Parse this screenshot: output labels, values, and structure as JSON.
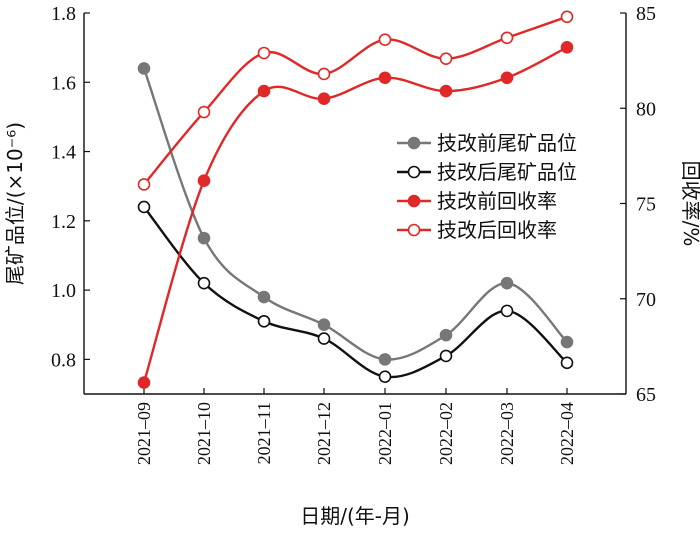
{
  "chart_data": {
    "type": "line",
    "categories": [
      "2021–09",
      "2021–10",
      "2021–11",
      "2021–12",
      "2022–01",
      "2022–02",
      "2022–03",
      "2022–04"
    ],
    "xlabel": "日期/(年-月)",
    "ylabel_left": "尾矿品位/(×10⁻⁶)",
    "ylabel_right": "回收率/%",
    "ylim_left": [
      0.7,
      1.8
    ],
    "ylim_right": [
      65,
      85
    ],
    "yticks_left": [
      "0.8",
      "1.0",
      "1.2",
      "1.4",
      "1.6",
      "1.8"
    ],
    "yticks_right": [
      "65",
      "70",
      "75",
      "80",
      "85"
    ],
    "legend_position": "right-middle",
    "series": [
      {
        "name": "技改前尾矿品位",
        "axis": "left",
        "color": "#777777",
        "marker": "filled",
        "values": [
          1.64,
          1.15,
          0.98,
          0.9,
          0.8,
          0.87,
          1.02,
          0.85
        ]
      },
      {
        "name": "技改后尾矿品位",
        "axis": "left",
        "color": "#111111",
        "marker": "open",
        "values": [
          1.24,
          1.02,
          0.91,
          0.86,
          0.75,
          0.81,
          0.94,
          0.79
        ]
      },
      {
        "name": "技改前回收率",
        "axis": "right",
        "color": "#e02828",
        "marker": "filled",
        "values": [
          65.6,
          76.2,
          80.9,
          80.5,
          81.6,
          80.9,
          81.6,
          83.2
        ]
      },
      {
        "name": "技改后回收率",
        "axis": "right",
        "color": "#e02828",
        "marker": "open",
        "values": [
          76.0,
          79.8,
          82.9,
          81.8,
          83.6,
          82.6,
          83.7,
          84.8
        ]
      }
    ]
  }
}
